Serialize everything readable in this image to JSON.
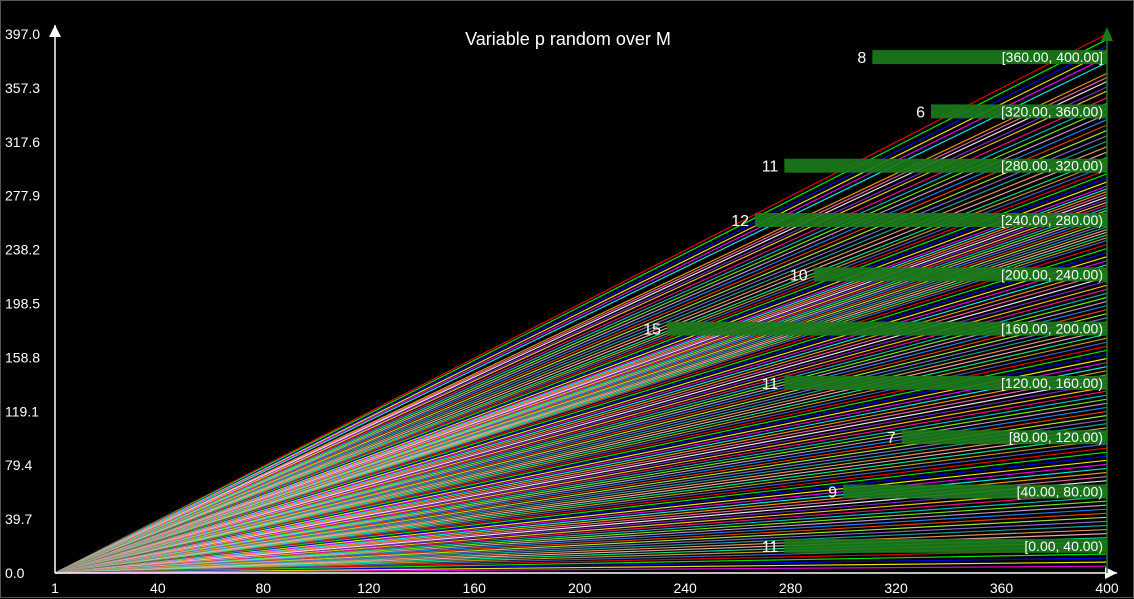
{
  "chart_data": {
    "type": "line",
    "title": "Variable p random over M",
    "xlabel": "",
    "ylabel": "",
    "xlim": [
      1,
      400
    ],
    "ylim": [
      0,
      397.0
    ],
    "x_ticks": [
      "1",
      "40",
      "80",
      "120",
      "160",
      "200",
      "240",
      "280",
      "320",
      "360",
      "400"
    ],
    "y_ticks": [
      "0.0",
      "39.7",
      "79.4",
      "119.1",
      "158.8",
      "198.5",
      "238.2",
      "277.9",
      "317.6",
      "357.3",
      "397.0"
    ],
    "grid": false,
    "series_description": "fan of straight lines from origin, each y = p * M with random slope p",
    "line_end_values": [
      397,
      393,
      388,
      384,
      380,
      376,
      368,
      365,
      362,
      358,
      355,
      350,
      346,
      342,
      338,
      334,
      330,
      326,
      322,
      318,
      314,
      310,
      306,
      303,
      300,
      297,
      294,
      291,
      288,
      285,
      283,
      281,
      279,
      277,
      275,
      273,
      271,
      269,
      267,
      265,
      263,
      261,
      259,
      257,
      255,
      253,
      251,
      249,
      247,
      245,
      242,
      239,
      236,
      233,
      230,
      227,
      224,
      221,
      218,
      215,
      212,
      209,
      206,
      203,
      200,
      197,
      194,
      191,
      188,
      185,
      182,
      179,
      176,
      173,
      170,
      167,
      164,
      161,
      158,
      155,
      152,
      149,
      146,
      143,
      140,
      137,
      134,
      131,
      128,
      125,
      122,
      119,
      116,
      113,
      110,
      107,
      104,
      101,
      98,
      95,
      92,
      89,
      86,
      83,
      80,
      77,
      74,
      71,
      68,
      65,
      62,
      59,
      56,
      53,
      50,
      47,
      44,
      41,
      38,
      35,
      32,
      29,
      26,
      23,
      20,
      17,
      14,
      11,
      8,
      5
    ],
    "line_colors": [
      "#ff0000",
      "#00ff00",
      "#0000ff",
      "#ffff00",
      "#ff00ff",
      "#00ffff",
      "#ffa500",
      "#ff69b4",
      "#ffffff",
      "#8a2be2",
      "#ffd700",
      "#ff1493",
      "#00ced1",
      "#7fff00",
      "#dda0dd",
      "#1e90ff",
      "#ff4500",
      "#adff2f",
      "#9370db",
      "#20b2aa",
      "#f4a460",
      "#ffb6c1",
      "#00fa9a",
      "#daa520",
      "#4169e1"
    ],
    "histogram": {
      "orientation": "horizontal",
      "color": "#1a7a1a",
      "bins": [
        {
          "label": "[360.00, 400.00]",
          "count": 8,
          "count_label": "8",
          "y_low": 360,
          "y_high": 400
        },
        {
          "label": "[320.00, 360.00)",
          "count": 6,
          "count_label": "6",
          "y_low": 320,
          "y_high": 360
        },
        {
          "label": "[280.00, 320.00)",
          "count": 11,
          "count_label": "11",
          "y_low": 280,
          "y_high": 320
        },
        {
          "label": "[240.00, 280.00)",
          "count": 12,
          "count_label": "12",
          "y_low": 240,
          "y_high": 280
        },
        {
          "label": "[200.00, 240.00)",
          "count": 10,
          "count_label": "10",
          "y_low": 200,
          "y_high": 240
        },
        {
          "label": "[160.00, 200.00)",
          "count": 15,
          "count_label": "15",
          "y_low": 160,
          "y_high": 200
        },
        {
          "label": "[120.00, 160.00)",
          "count": 11,
          "count_label": "11",
          "y_low": 120,
          "y_high": 160
        },
        {
          "label": "[80.00, 120.00)",
          "count": 7,
          "count_label": "7",
          "y_low": 80,
          "y_high": 120
        },
        {
          "label": "[40.00, 80.00)",
          "count": 9,
          "count_label": "9",
          "y_low": 40,
          "y_high": 80
        },
        {
          "label": "[0.00, 40.00)",
          "count": 11,
          "count_label": "11",
          "y_low": 0,
          "y_high": 40
        }
      ]
    }
  }
}
